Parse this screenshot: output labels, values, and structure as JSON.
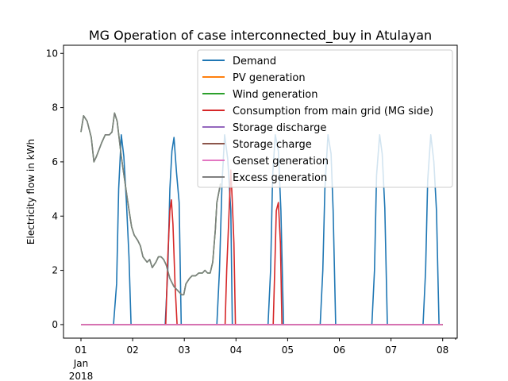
{
  "chart_data": {
    "type": "line",
    "title": "MG Operation of case interconnected_buy in Atulayan",
    "xlabel": "",
    "ylabel": "Electricity flow in kWh",
    "xlim": [
      0,
      7.0
    ],
    "ylim": [
      -0.5,
      10.3
    ],
    "x_ticks": [
      {
        "x": 0,
        "label": "01",
        "sub": [
          "Jan",
          "2018"
        ]
      },
      {
        "x": 1,
        "label": "02"
      },
      {
        "x": 2,
        "label": "03"
      },
      {
        "x": 3,
        "label": "04"
      },
      {
        "x": 4,
        "label": "05"
      },
      {
        "x": 5,
        "label": "06"
      },
      {
        "x": 6,
        "label": "07"
      },
      {
        "x": 7,
        "label": "08"
      }
    ],
    "y_ticks": [
      0,
      2,
      4,
      6,
      8,
      10
    ],
    "grid": false,
    "legend_position": "upper right",
    "series": [
      {
        "name": "Demand",
        "color": "#1f77b4",
        "points": [
          [
            0,
            0
          ],
          [
            0.63,
            0
          ],
          [
            0.69,
            1.5
          ],
          [
            0.73,
            5.0
          ],
          [
            0.78,
            7.0
          ],
          [
            0.83,
            6.2
          ],
          [
            0.88,
            4.5
          ],
          [
            0.93,
            2.5
          ],
          [
            0.97,
            0
          ],
          [
            1.63,
            0
          ],
          [
            1.68,
            2.0
          ],
          [
            1.72,
            5.0
          ],
          [
            1.76,
            6.4
          ],
          [
            1.8,
            6.9
          ],
          [
            1.85,
            5.6
          ],
          [
            1.9,
            4.5
          ],
          [
            1.94,
            0
          ],
          [
            2.63,
            0
          ],
          [
            2.68,
            2.0
          ],
          [
            2.73,
            5.2
          ],
          [
            2.78,
            7.0
          ],
          [
            2.84,
            6.1
          ],
          [
            2.9,
            4.2
          ],
          [
            2.93,
            0
          ],
          [
            3.62,
            0
          ],
          [
            3.67,
            2.0
          ],
          [
            3.71,
            5.5
          ],
          [
            3.76,
            7.0
          ],
          [
            3.82,
            6.4
          ],
          [
            3.87,
            4.2
          ],
          [
            3.92,
            0
          ],
          [
            4.63,
            0
          ],
          [
            4.68,
            2.0
          ],
          [
            4.72,
            5.0
          ],
          [
            4.78,
            7.0
          ],
          [
            4.84,
            6.3
          ],
          [
            4.88,
            4.2
          ],
          [
            4.93,
            0
          ],
          [
            5.63,
            0
          ],
          [
            5.68,
            2.0
          ],
          [
            5.72,
            5.5
          ],
          [
            5.78,
            7.0
          ],
          [
            5.83,
            6.3
          ],
          [
            5.88,
            4.3
          ],
          [
            5.93,
            0
          ],
          [
            6.62,
            0
          ],
          [
            6.67,
            2.0
          ],
          [
            6.71,
            5.3
          ],
          [
            6.77,
            7.0
          ],
          [
            6.83,
            6.0
          ],
          [
            6.88,
            4.2
          ],
          [
            6.93,
            0
          ],
          [
            7.0,
            0
          ]
        ]
      },
      {
        "name": "PV generation",
        "color": "#ff7f0e",
        "points": [
          [
            0,
            0
          ],
          [
            7.0,
            0
          ]
        ]
      },
      {
        "name": "Wind generation",
        "color": "#2ca02c",
        "points": [
          [
            0,
            7.1
          ],
          [
            0.05,
            7.7
          ],
          [
            0.12,
            7.5
          ],
          [
            0.2,
            6.9
          ],
          [
            0.25,
            6.0
          ],
          [
            0.3,
            6.2
          ],
          [
            0.4,
            6.7
          ],
          [
            0.47,
            7.0
          ],
          [
            0.55,
            7.0
          ],
          [
            0.6,
            7.1
          ],
          [
            0.65,
            7.8
          ],
          [
            0.7,
            7.5
          ],
          [
            0.78,
            6.2
          ],
          [
            0.9,
            4.6
          ],
          [
            0.98,
            3.6
          ],
          [
            1.03,
            3.3
          ],
          [
            1.1,
            3.1
          ],
          [
            1.15,
            2.9
          ],
          [
            1.2,
            2.5
          ],
          [
            1.28,
            2.3
          ],
          [
            1.33,
            2.4
          ],
          [
            1.38,
            2.1
          ],
          [
            1.45,
            2.3
          ],
          [
            1.5,
            2.5
          ],
          [
            1.55,
            2.5
          ],
          [
            1.6,
            2.4
          ],
          [
            1.65,
            2.2
          ],
          [
            1.72,
            1.7
          ],
          [
            1.8,
            1.4
          ],
          [
            1.85,
            1.3
          ],
          [
            1.9,
            1.2
          ],
          [
            1.95,
            1.1
          ],
          [
            1.99,
            1.1
          ],
          [
            2.03,
            1.5
          ],
          [
            2.1,
            1.7
          ],
          [
            2.15,
            1.8
          ],
          [
            2.22,
            1.8
          ],
          [
            2.28,
            1.9
          ],
          [
            2.35,
            1.9
          ],
          [
            2.4,
            2.0
          ],
          [
            2.45,
            1.9
          ],
          [
            2.5,
            1.9
          ],
          [
            2.55,
            2.3
          ],
          [
            2.6,
            3.5
          ],
          [
            2.63,
            4.5
          ],
          [
            2.7,
            5.2
          ]
        ]
      },
      {
        "name": "Consumption from main grid (MG side)",
        "color": "#d62728",
        "points": [
          [
            0,
            0
          ],
          [
            1.64,
            0
          ],
          [
            1.68,
            2.5
          ],
          [
            1.72,
            4.2
          ],
          [
            1.75,
            4.6
          ],
          [
            1.78,
            3.7
          ],
          [
            1.82,
            1.5
          ],
          [
            1.86,
            0
          ],
          [
            2.79,
            0
          ],
          [
            2.82,
            2.0
          ],
          [
            2.87,
            4.3
          ],
          [
            2.9,
            5.7
          ],
          [
            2.93,
            4.5
          ],
          [
            2.96,
            3.0
          ],
          [
            2.99,
            0
          ],
          [
            3.72,
            0
          ],
          [
            3.75,
            2.0
          ],
          [
            3.78,
            4.2
          ],
          [
            3.82,
            4.5
          ],
          [
            3.86,
            3.0
          ],
          [
            3.89,
            0
          ],
          [
            7.0,
            0
          ]
        ]
      },
      {
        "name": "Storage discharge",
        "color": "#9467bd",
        "points": [
          [
            0,
            0
          ],
          [
            7.0,
            0
          ]
        ]
      },
      {
        "name": "Storage charge",
        "color": "#8c564b",
        "points": [
          [
            0,
            0
          ],
          [
            7.0,
            0
          ]
        ]
      },
      {
        "name": "Genset generation",
        "color": "#e377c2",
        "points": [
          [
            0,
            0
          ],
          [
            7.0,
            0
          ]
        ]
      },
      {
        "name": "Excess generation",
        "color": "#7f7f7f",
        "points": [
          [
            0,
            7.1
          ],
          [
            0.05,
            7.7
          ],
          [
            0.12,
            7.5
          ],
          [
            0.2,
            6.9
          ],
          [
            0.25,
            6.0
          ],
          [
            0.3,
            6.2
          ],
          [
            0.4,
            6.7
          ],
          [
            0.47,
            7.0
          ],
          [
            0.55,
            7.0
          ],
          [
            0.6,
            7.1
          ],
          [
            0.65,
            7.8
          ],
          [
            0.7,
            7.5
          ],
          [
            0.78,
            6.2
          ],
          [
            0.9,
            4.6
          ],
          [
            0.98,
            3.6
          ],
          [
            1.03,
            3.3
          ],
          [
            1.1,
            3.1
          ],
          [
            1.15,
            2.9
          ],
          [
            1.2,
            2.5
          ],
          [
            1.28,
            2.3
          ],
          [
            1.33,
            2.4
          ],
          [
            1.38,
            2.1
          ],
          [
            1.45,
            2.3
          ],
          [
            1.5,
            2.5
          ],
          [
            1.55,
            2.5
          ],
          [
            1.6,
            2.4
          ],
          [
            1.65,
            2.2
          ],
          [
            1.72,
            1.7
          ],
          [
            1.8,
            1.4
          ],
          [
            1.85,
            1.3
          ],
          [
            1.9,
            1.2
          ],
          [
            1.95,
            1.1
          ],
          [
            1.99,
            1.1
          ],
          [
            2.03,
            1.5
          ],
          [
            2.1,
            1.7
          ],
          [
            2.15,
            1.8
          ],
          [
            2.22,
            1.8
          ],
          [
            2.28,
            1.9
          ],
          [
            2.35,
            1.9
          ],
          [
            2.4,
            2.0
          ],
          [
            2.45,
            1.9
          ],
          [
            2.5,
            1.9
          ],
          [
            2.55,
            2.3
          ],
          [
            2.6,
            3.5
          ],
          [
            2.63,
            4.5
          ],
          [
            2.7,
            5.2
          ]
        ]
      }
    ]
  }
}
